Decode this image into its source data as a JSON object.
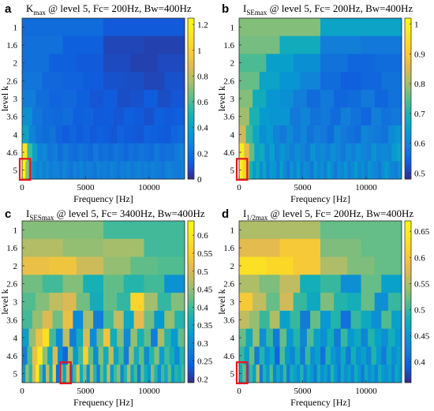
{
  "chart_data": [
    {
      "panel": "a",
      "type": "heatmap",
      "title_main": "K",
      "title_sub": "max",
      "title_rest": " @ level 5, Fc= 200Hz, Bw=400Hz",
      "xlabel": "Frequency [Hz]",
      "ylabel": "level k",
      "xticks": [
        "0",
        "5000",
        "10000"
      ],
      "xlim": [
        0,
        12800
      ],
      "yticks": [
        "1",
        "1.6",
        "2",
        "2.6",
        "3",
        "3.6",
        "4",
        "4.6",
        "5"
      ],
      "colorbar": {
        "ticks": [
          "0",
          "0.2",
          "0.4",
          "0.6",
          "0.8",
          "1",
          "1.2"
        ],
        "range": [
          0,
          1.25
        ],
        "colormap": "parula"
      },
      "highlight": {
        "level_row": 8,
        "freq_center": 200,
        "bandwidth": 400,
        "color": "#e8141e"
      },
      "rows": [
        [
          0.18,
          0.12
        ],
        [
          0.2,
          0.14,
          0.07,
          0.06
        ],
        [
          0.2,
          0.14,
          0.12,
          0.08,
          0.06,
          0.08
        ],
        [
          0.22,
          0.17,
          0.15,
          0.13,
          0.1,
          0.09,
          0.07,
          0.1
        ],
        [
          0.25,
          0.19,
          0.16,
          0.17,
          0.14,
          0.11,
          0.13,
          0.09,
          0.1,
          0.13,
          0.09,
          0.11
        ],
        [
          0.33,
          0.22,
          0.18,
          0.17,
          0.19,
          0.14,
          0.15,
          0.12,
          0.13,
          0.11,
          0.14,
          0.12,
          0.1,
          0.14,
          0.12,
          0.14
        ],
        [
          0.42,
          0.27,
          0.21,
          0.18,
          0.21,
          0.16,
          0.13,
          0.16,
          0.13,
          0.15,
          0.12,
          0.14,
          0.13,
          0.11,
          0.15,
          0.13,
          0.12,
          0.11,
          0.15,
          0.14,
          0.13,
          0.12,
          0.16,
          0.18
        ],
        [
          1.12,
          0.58,
          0.41,
          0.27,
          0.3,
          0.22,
          0.26,
          0.19,
          0.24,
          0.21,
          0.18,
          0.22,
          0.2,
          0.17,
          0.23,
          0.19,
          0.21,
          0.18,
          0.22,
          0.2,
          0.17,
          0.21,
          0.19,
          0.22,
          0.2,
          0.18,
          0.23,
          0.19,
          0.21,
          0.2,
          0.24,
          0.27
        ],
        [
          1.22,
          0.72,
          0.46,
          0.33,
          0.28,
          0.32,
          0.26,
          0.3,
          0.24,
          0.28,
          0.27,
          0.23,
          0.29,
          0.25,
          0.22,
          0.27,
          0.24,
          0.28,
          0.23,
          0.26,
          0.25,
          0.22,
          0.27,
          0.24,
          0.26,
          0.23,
          0.28,
          0.25,
          0.22,
          0.26,
          0.24,
          0.27,
          0.23,
          0.25,
          0.28,
          0.24,
          0.26,
          0.23,
          0.27,
          0.25,
          0.24,
          0.22,
          0.26,
          0.28,
          0.25,
          0.24,
          0.23,
          0.27
        ]
      ]
    },
    {
      "panel": "b",
      "type": "heatmap",
      "title_main": "I",
      "title_sub": "SEmax",
      "title_rest": " @ level 5, Fc= 200Hz, Bw=400Hz",
      "xlabel": "Frequency [Hz]",
      "ylabel": "level k",
      "xticks": [
        "0",
        "5000",
        "10000"
      ],
      "xlim": [
        0,
        12800
      ],
      "yticks": [
        "1",
        "1.6",
        "2",
        "2.6",
        "3",
        "3.6",
        "4",
        "4.6",
        "5"
      ],
      "colorbar": {
        "ticks": [
          "0.5",
          "0.6",
          "0.7",
          "0.8",
          "0.9",
          "1"
        ],
        "range": [
          0.48,
          1.02
        ],
        "colormap": "parula"
      },
      "highlight": {
        "level_row": 8,
        "freq_center": 200,
        "bandwidth": 400,
        "color": "#e8141e"
      },
      "rows": [
        [
          0.78,
          0.66
        ],
        [
          0.77,
          0.68,
          0.59,
          0.58
        ],
        [
          0.74,
          0.65,
          0.62,
          0.57,
          0.55,
          0.56
        ],
        [
          0.76,
          0.66,
          0.63,
          0.6,
          0.56,
          0.54,
          0.55,
          0.57
        ],
        [
          0.78,
          0.68,
          0.63,
          0.62,
          0.59,
          0.56,
          0.58,
          0.55,
          0.56,
          0.58,
          0.55,
          0.57
        ],
        [
          0.8,
          0.7,
          0.64,
          0.63,
          0.63,
          0.58,
          0.6,
          0.57,
          0.58,
          0.56,
          0.59,
          0.57,
          0.55,
          0.59,
          0.57,
          0.58
        ],
        [
          0.84,
          0.73,
          0.67,
          0.62,
          0.64,
          0.6,
          0.58,
          0.61,
          0.58,
          0.6,
          0.57,
          0.59,
          0.58,
          0.56,
          0.6,
          0.58,
          0.57,
          0.56,
          0.6,
          0.59,
          0.58,
          0.57,
          0.61,
          0.63
        ],
        [
          0.98,
          0.86,
          0.76,
          0.66,
          0.68,
          0.62,
          0.65,
          0.6,
          0.63,
          0.61,
          0.59,
          0.62,
          0.6,
          0.58,
          0.63,
          0.6,
          0.61,
          0.59,
          0.62,
          0.6,
          0.58,
          0.61,
          0.59,
          0.62,
          0.6,
          0.59,
          0.63,
          0.6,
          0.61,
          0.6,
          0.64,
          0.66
        ],
        [
          1.0,
          0.92,
          0.82,
          0.7,
          0.64,
          0.68,
          0.62,
          0.66,
          0.6,
          0.64,
          0.63,
          0.59,
          0.65,
          0.61,
          0.58,
          0.63,
          0.6,
          0.64,
          0.59,
          0.62,
          0.61,
          0.58,
          0.63,
          0.6,
          0.62,
          0.59,
          0.64,
          0.61,
          0.58,
          0.62,
          0.6,
          0.63,
          0.59,
          0.61,
          0.64,
          0.6,
          0.62,
          0.59,
          0.63,
          0.61,
          0.6,
          0.58,
          0.62,
          0.64,
          0.61,
          0.6,
          0.59,
          0.63
        ]
      ]
    },
    {
      "panel": "c",
      "type": "heatmap",
      "title_main": "I",
      "title_sub": "SESmax",
      "title_rest": " @ level 5, Fc= 3400Hz, Bw=400Hz",
      "xlabel": "Frequency [Hz]",
      "ylabel": "level k",
      "xticks": [
        "0",
        "5000",
        "10000"
      ],
      "xlim": [
        0,
        12800
      ],
      "yticks": [
        "1",
        "1.6",
        "2",
        "2.6",
        "3",
        "3.6",
        "4",
        "4.6",
        "5"
      ],
      "colorbar": {
        "ticks": [
          "0.2",
          "0.25",
          "0.3",
          "0.35",
          "0.4",
          "0.45",
          "0.5",
          "0.55",
          "0.6"
        ],
        "range": [
          0.19,
          0.64
        ],
        "colormap": "parula"
      },
      "highlight": {
        "level_row": 8,
        "freq_center": 3400,
        "bandwidth": 400,
        "color": "#e8141e"
      },
      "rows": [
        [
          0.44,
          0.4
        ],
        [
          0.47,
          0.45,
          0.46,
          0.4
        ],
        [
          0.52,
          0.53,
          0.49,
          0.45,
          0.42,
          0.41
        ],
        [
          0.43,
          0.4,
          0.44,
          0.37,
          0.42,
          0.38,
          0.4,
          0.31
        ],
        [
          0.41,
          0.44,
          0.48,
          0.5,
          0.43,
          0.36,
          0.42,
          0.39,
          0.56,
          0.46,
          0.39,
          0.44
        ],
        [
          0.4,
          0.45,
          0.5,
          0.43,
          0.52,
          0.3,
          0.46,
          0.28,
          0.4,
          0.48,
          0.35,
          0.51,
          0.43,
          0.32,
          0.45,
          0.38
        ],
        [
          0.33,
          0.45,
          0.52,
          0.58,
          0.4,
          0.3,
          0.48,
          0.28,
          0.36,
          0.5,
          0.3,
          0.42,
          0.53,
          0.36,
          0.44,
          0.3,
          0.45,
          0.37,
          0.42,
          0.28,
          0.46,
          0.38,
          0.32,
          0.42
        ],
        [
          0.28,
          0.4,
          0.52,
          0.6,
          0.45,
          0.35,
          0.5,
          0.3,
          0.25,
          0.46,
          0.32,
          0.4,
          0.55,
          0.42,
          0.3,
          0.44,
          0.36,
          0.48,
          0.34,
          0.4,
          0.28,
          0.45,
          0.36,
          0.42,
          0.3,
          0.38,
          0.44,
          0.33,
          0.4,
          0.36,
          0.3,
          0.38
        ],
        [
          0.32,
          0.45,
          0.38,
          0.5,
          0.6,
          0.42,
          0.3,
          0.48,
          0.36,
          0.55,
          0.26,
          0.44,
          0.34,
          0.48,
          0.3,
          0.4,
          0.52,
          0.36,
          0.44,
          0.3,
          0.46,
          0.38,
          0.28,
          0.42,
          0.35,
          0.48,
          0.32,
          0.4,
          0.44,
          0.3,
          0.38,
          0.46,
          0.34,
          0.4,
          0.28,
          0.42,
          0.36,
          0.32,
          0.44,
          0.38,
          0.3,
          0.4,
          0.35,
          0.42,
          0.32,
          0.38,
          0.36,
          0.4
        ]
      ]
    },
    {
      "panel": "d",
      "type": "heatmap",
      "title_main": "I",
      "title_sub": "1/2max",
      "title_rest": " @ level 5, Fc= 200Hz, Bw=400Hz",
      "xlabel": "Frequency [Hz]",
      "ylabel": "level k",
      "xticks": [
        "0",
        "5000",
        "10000"
      ],
      "xlim": [
        0,
        12800
      ],
      "yticks": [
        "1",
        "1.6",
        "2",
        "2.6",
        "3",
        "3.6",
        "4",
        "4.6",
        "5"
      ],
      "colorbar": {
        "ticks": [
          "0.4",
          "0.45",
          "0.5",
          "0.55",
          "0.6",
          "0.65"
        ],
        "range": [
          0.36,
          0.67
        ],
        "colormap": "parula"
      },
      "highlight": {
        "level_row": 8,
        "freq_center": 200,
        "bandwidth": 400,
        "color": "#e8141e"
      },
      "rows": [
        [
          0.55,
          0.52
        ],
        [
          0.58,
          0.6,
          0.53,
          0.52
        ],
        [
          0.63,
          0.62,
          0.6,
          0.55,
          0.53,
          0.52
        ],
        [
          0.55,
          0.53,
          0.56,
          0.48,
          0.5,
          0.44,
          0.52,
          0.46
        ],
        [
          0.6,
          0.56,
          0.52,
          0.57,
          0.5,
          0.47,
          0.53,
          0.49,
          0.48,
          0.52,
          0.44,
          0.5
        ],
        [
          0.56,
          0.54,
          0.5,
          0.55,
          0.46,
          0.5,
          0.42,
          0.52,
          0.45,
          0.49,
          0.41,
          0.5,
          0.47,
          0.44,
          0.51,
          0.46
        ],
        [
          0.52,
          0.47,
          0.54,
          0.44,
          0.5,
          0.42,
          0.52,
          0.45,
          0.49,
          0.43,
          0.51,
          0.46,
          0.44,
          0.48,
          0.42,
          0.5,
          0.45,
          0.47,
          0.43,
          0.49,
          0.46,
          0.44,
          0.48,
          0.45
        ],
        [
          0.5,
          0.46,
          0.52,
          0.42,
          0.49,
          0.44,
          0.47,
          0.4,
          0.51,
          0.45,
          0.43,
          0.48,
          0.42,
          0.5,
          0.44,
          0.46,
          0.41,
          0.49,
          0.45,
          0.43,
          0.47,
          0.42,
          0.48,
          0.44,
          0.46,
          0.43,
          0.49,
          0.45,
          0.42,
          0.47,
          0.44,
          0.46
        ],
        [
          0.48,
          0.52,
          0.44,
          0.5,
          0.46,
          0.55,
          0.42,
          0.49,
          0.45,
          0.51,
          0.43,
          0.47,
          0.44,
          0.5,
          0.42,
          0.48,
          0.46,
          0.44,
          0.49,
          0.43,
          0.47,
          0.45,
          0.42,
          0.48,
          0.44,
          0.46,
          0.43,
          0.49,
          0.45,
          0.42,
          0.47,
          0.44,
          0.46,
          0.43,
          0.48,
          0.45,
          0.42,
          0.47,
          0.44,
          0.46,
          0.43,
          0.48,
          0.45,
          0.44,
          0.46,
          0.43,
          0.47,
          0.45
        ]
      ]
    }
  ]
}
